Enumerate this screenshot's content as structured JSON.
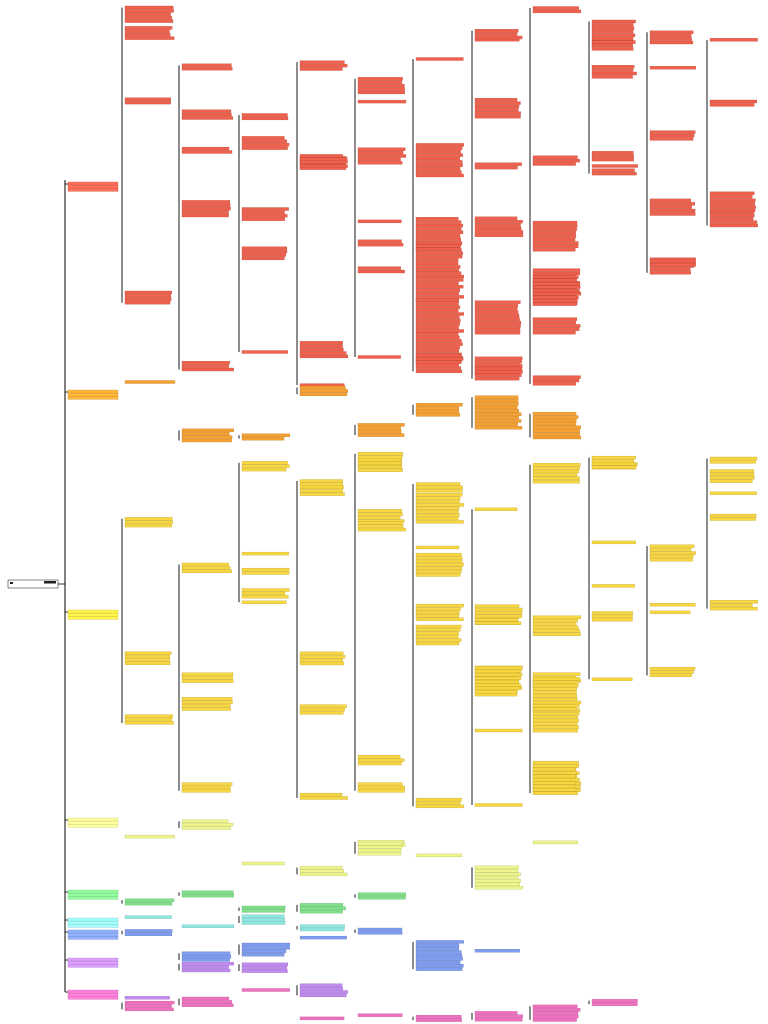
{
  "branches": [
    {
      "color": "#f0604c"
    },
    {
      "color": "#f5a030"
    },
    {
      "color": "#f7d640"
    },
    {
      "color": "#eef58a"
    },
    {
      "color": "#7fe08a"
    },
    {
      "color": "#8ee8e0"
    },
    {
      "color": "#7e9cf0"
    },
    {
      "color": "#c08af0"
    },
    {
      "color": "#f070c0"
    }
  ]
}
